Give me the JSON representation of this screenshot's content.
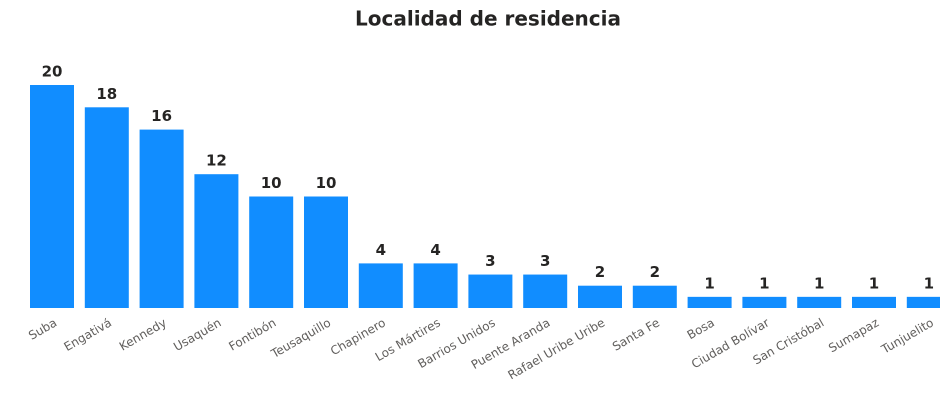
{
  "chart_data": {
    "type": "bar",
    "title": "Localidad de residencia",
    "categories": [
      "Suba",
      "Engativá",
      "Kennedy",
      "Usaquén",
      "Fontibón",
      "Teusaquillo",
      "Chapinero",
      "Los Mártires",
      "Barrios Unidos",
      "Puente Aranda",
      "Rafael Uribe Uribe",
      "Santa Fe",
      "Bosa",
      "Ciudad Bolívar",
      "San Cristóbal",
      "Sumapaz",
      "Tunjuelito"
    ],
    "values": [
      20,
      18,
      16,
      12,
      10,
      10,
      4,
      4,
      3,
      3,
      2,
      2,
      1,
      1,
      1,
      1,
      1
    ],
    "color": "#118dff"
  }
}
